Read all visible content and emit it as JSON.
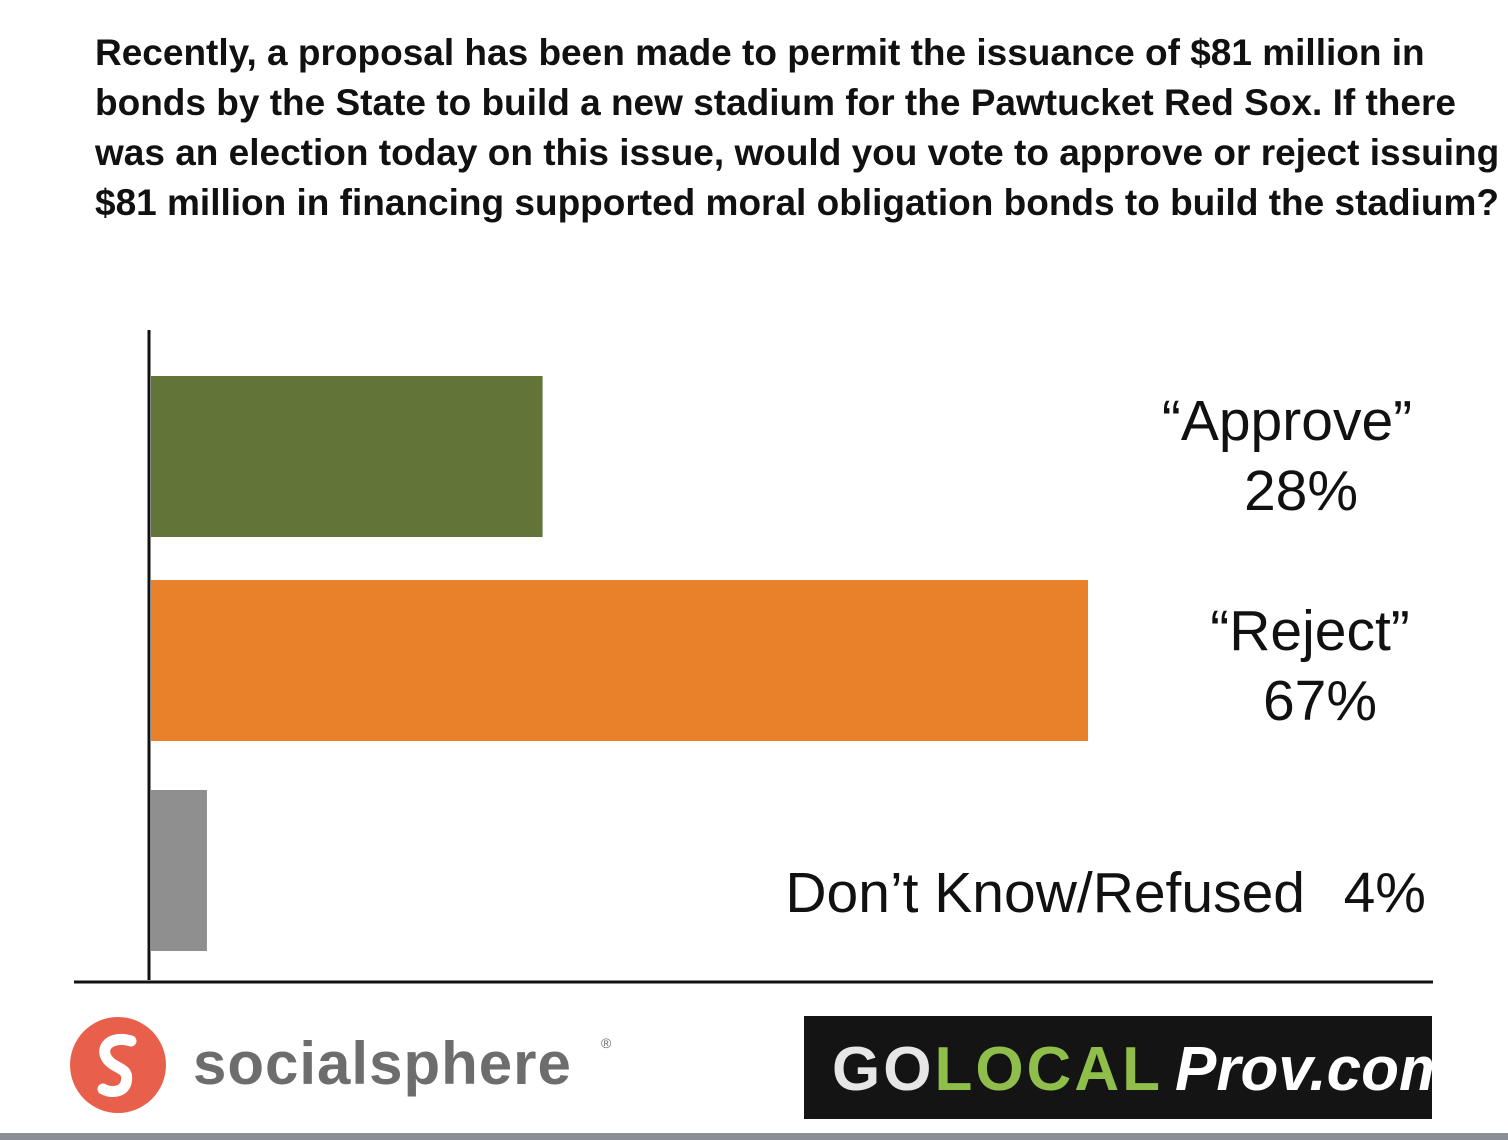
{
  "question": "Recently, a proposal has been made to permit the issuance of $81 million in bonds by the State to build a new stadium for the Pawtucket Red Sox. If there was an election today on this issue, would you vote to approve or reject issuing $81 million in financing supported moral obligation bonds to build the stadium?",
  "chart_data": {
    "type": "bar",
    "orientation": "horizontal",
    "categories": [
      "“Approve”",
      "“Reject”",
      "Don’t Know/Refused"
    ],
    "values": [
      28,
      67,
      4
    ],
    "value_labels": [
      "28%",
      "67%",
      "4%"
    ],
    "unit": "%",
    "colors": [
      "#617538",
      "#e8812a",
      "#8f8f8f"
    ],
    "xlim": [
      0,
      67
    ],
    "grid": false,
    "title": "",
    "xlabel": "",
    "ylabel": ""
  },
  "logos": {
    "socialsphere": {
      "name": "socialsphere",
      "registered_mark": "®",
      "mark_color": "#e8604c",
      "text_color": "#6d6d6d"
    },
    "golocal": {
      "part_go": "GO",
      "part_local": "LOCAL",
      "part_prov": "Prov.com",
      "background": "#141414",
      "go_color": "#e6e6e6",
      "local_color": "#8fbf4a",
      "prov_color": "#ffffff"
    }
  }
}
